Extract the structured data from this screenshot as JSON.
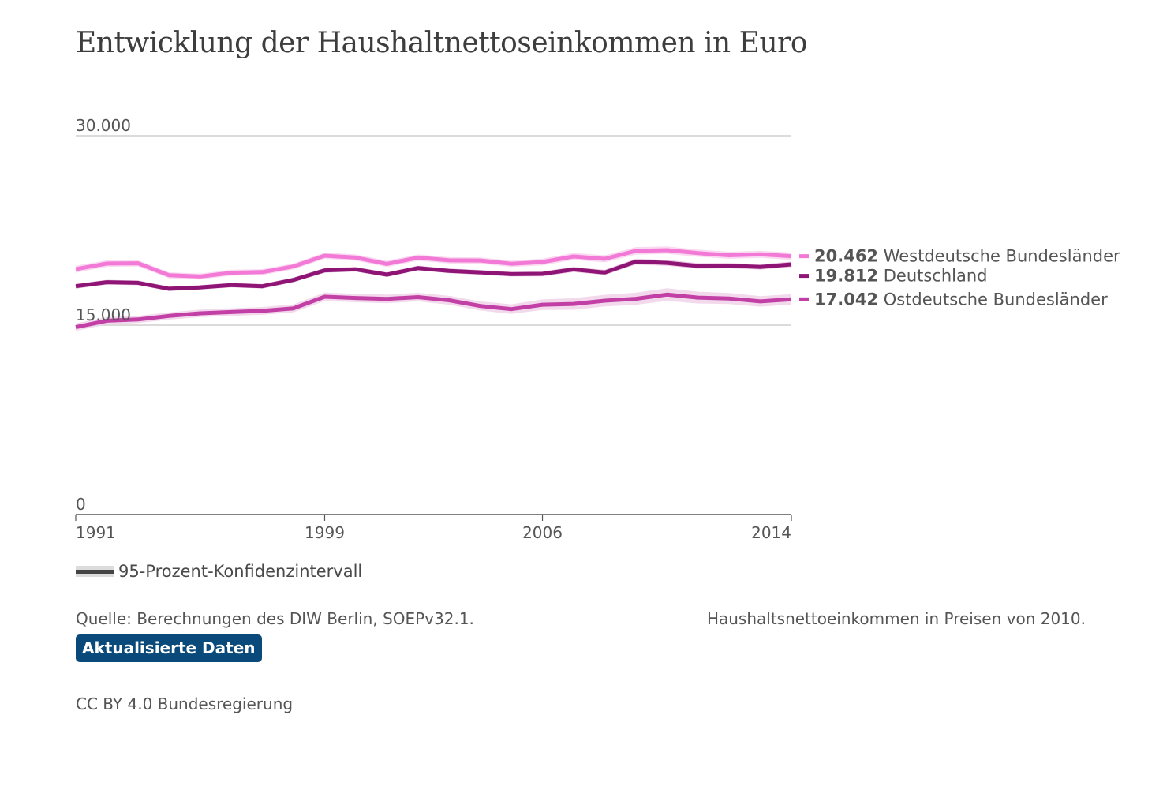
{
  "title": "Entwicklung der Haushaltnettoseinkommen in Euro",
  "chart_data": {
    "type": "line",
    "x": [
      1991,
      1992,
      1993,
      1994,
      1995,
      1996,
      1997,
      1998,
      1999,
      2000,
      2001,
      2002,
      2003,
      2004,
      2005,
      2006,
      2007,
      2008,
      2009,
      2010,
      2011,
      2012,
      2013,
      2014
    ],
    "ylim": [
      0,
      30000
    ],
    "y_ticks": [
      {
        "value": 0,
        "label": "0"
      },
      {
        "value": 15000,
        "label": "15.000"
      },
      {
        "value": 30000,
        "label": "30.000"
      }
    ],
    "x_ticks": [
      {
        "value": 1991,
        "label": "1991"
      },
      {
        "value": 1999,
        "label": "1999"
      },
      {
        "value": 2006,
        "label": "2006"
      },
      {
        "value": 2014,
        "label": "2014"
      }
    ],
    "series": [
      {
        "name": "Westdeutsche Bundesländer",
        "end_label": "20.462",
        "color": "#f27ad6",
        "band_color": "#f9d3ef",
        "values": [
          19430,
          19880,
          19900,
          18950,
          18850,
          19150,
          19200,
          19650,
          20500,
          20350,
          19850,
          20350,
          20130,
          20120,
          19860,
          20000,
          20440,
          20250,
          20880,
          20940,
          20700,
          20530,
          20610,
          20462
        ],
        "ci": [
          280,
          260,
          250,
          240,
          240,
          240,
          240,
          240,
          250,
          250,
          250,
          250,
          250,
          250,
          250,
          260,
          280,
          280,
          300,
          300,
          290,
          280,
          280,
          290
        ]
      },
      {
        "name": "Deutschland",
        "end_label": "19.812",
        "color": "#8e1476",
        "band_color": "#e7bfdc",
        "values": [
          18080,
          18400,
          18350,
          17880,
          17990,
          18170,
          18080,
          18580,
          19340,
          19420,
          19000,
          19520,
          19300,
          19180,
          19040,
          19060,
          19410,
          19170,
          20030,
          19930,
          19690,
          19710,
          19610,
          19812
        ],
        "ci": [
          200,
          190,
          190,
          180,
          180,
          180,
          180,
          180,
          190,
          190,
          190,
          190,
          190,
          190,
          190,
          200,
          210,
          210,
          230,
          230,
          220,
          210,
          210,
          220
        ]
      },
      {
        "name": "Ostdeutsche Bundesländer",
        "end_label": "17.042",
        "color": "#c23fa5",
        "band_color": "#f0d4e9",
        "values": [
          14840,
          15350,
          15450,
          15730,
          15940,
          16040,
          16130,
          16330,
          17250,
          17150,
          17080,
          17220,
          16970,
          16520,
          16270,
          16620,
          16680,
          16940,
          17090,
          17420,
          17180,
          17110,
          16880,
          17042
        ],
        "ci": [
          300,
          290,
          290,
          290,
          300,
          300,
          310,
          320,
          340,
          340,
          340,
          340,
          350,
          360,
          380,
          420,
          460,
          460,
          480,
          500,
          470,
          440,
          420,
          410
        ]
      }
    ],
    "legend_band_label": "95-Prozent-Konfidenzintervall"
  },
  "source": "Quelle: Berechnungen des DIW Berlin, SOEPv32.1.",
  "note": "Haushaltsnettoeinkommen in Preisen von 2010.",
  "update_button": "Aktualisierte Daten",
  "license": "CC BY 4.0 Bundesregierung"
}
